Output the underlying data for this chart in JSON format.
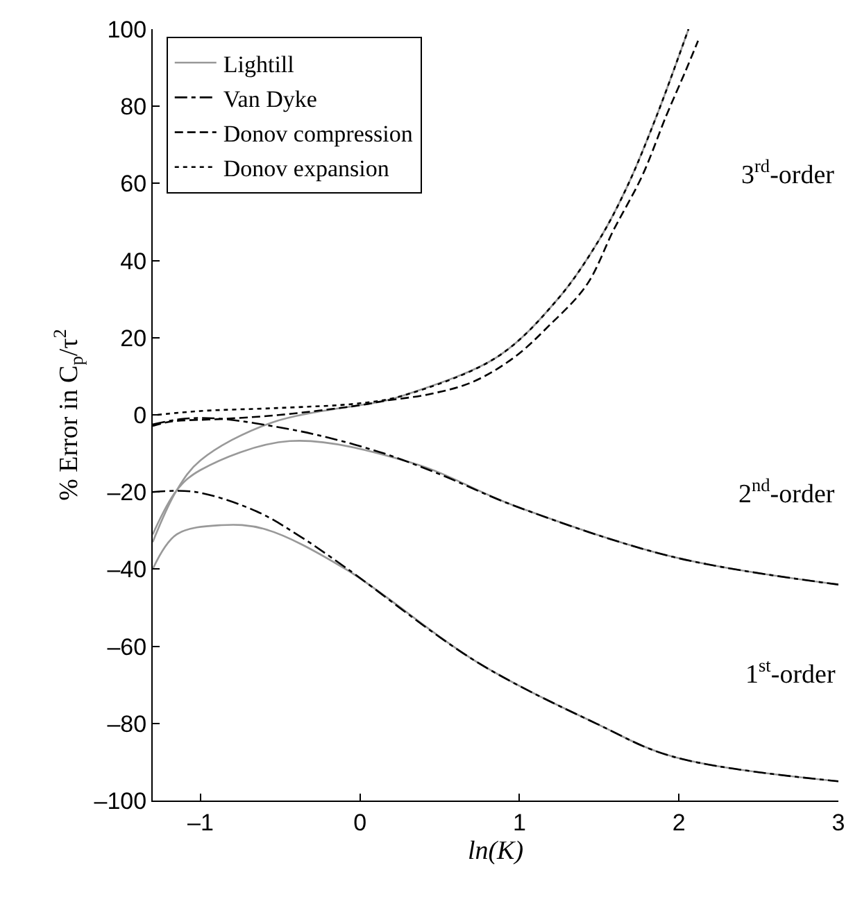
{
  "chart_data": {
    "type": "line",
    "xlabel": "ln(K)",
    "ylabel": "% Error in C$_{p}$/τ$^{2}$",
    "xlim": [
      -1.3,
      3
    ],
    "xticks": [
      {
        "value": -1,
        "label": "–1"
      },
      0,
      1,
      2,
      3
    ],
    "ylim": [
      -100,
      100
    ],
    "yticks": [
      {
        "value": -100,
        "label": "–100"
      },
      {
        "value": -80,
        "label": "–80"
      },
      {
        "value": -60,
        "label": "–60"
      },
      {
        "value": -40,
        "label": "–40"
      },
      {
        "value": -20,
        "label": "–20"
      },
      0,
      20,
      40,
      60,
      80,
      100
    ],
    "legend": "top left",
    "marker": "none",
    "series": [
      {
        "name": "Lightill",
        "color": "#999999",
        "line_style": "solid",
        "x": [
          -1.3,
          -1.15,
          -0.87,
          -0.6,
          -0.09,
          0.73,
          1.48,
          1.96,
          3,
          null,
          -1.3,
          -1.15,
          -1.0,
          -0.44,
          0.33,
          0.97,
          1.96,
          3,
          null,
          -1.3,
          -1.15,
          -1.0,
          -0.56,
          0.15,
          0.27,
          0.86,
          1.24,
          1.5,
          1.68,
          1.86,
          2.06
        ],
        "values": [
          -40,
          -31,
          -28.6,
          -29.6,
          -40,
          -64,
          -80,
          -88.6,
          -95,
          null,
          -31,
          -19.6,
          -14.3,
          -6.8,
          -12.5,
          -23.6,
          -36.8,
          -44,
          null,
          -33,
          -19.6,
          -11.8,
          -2.1,
          3.6,
          5,
          15,
          30,
          45.4,
          59.6,
          77.5,
          100
        ]
      },
      {
        "name": "Van Dyke",
        "color": "#000000",
        "line_style": "dashdot",
        "x": [
          -1.3,
          -1.03,
          -0.65,
          -0.38,
          -0.09,
          0.73,
          1.48,
          1.96,
          3,
          null,
          -1.3,
          -1.1,
          -0.88,
          -0.47,
          -0.2,
          0.15,
          0.5,
          0.97,
          1.96,
          3
        ],
        "values": [
          -20,
          -20,
          -25,
          -31.4,
          -39.6,
          -64,
          -80,
          -88.6,
          -95,
          null,
          -2.5,
          -1,
          -1,
          -3.5,
          -5.9,
          -10,
          -15.4,
          -23.6,
          -36.8,
          -44
        ]
      },
      {
        "name": "Donov compression",
        "color": "#000000",
        "line_style": "dashed",
        "x": [
          -1.3,
          -1.18,
          -0.88,
          -0.5,
          0,
          0.15,
          0.44,
          0.71,
          0.97,
          1.18,
          1.42,
          1.59,
          1.77,
          1.92,
          2.04,
          2.12
        ],
        "values": [
          -2.9,
          -1.7,
          -1.1,
          0,
          2.5,
          3.6,
          5.4,
          8.6,
          15,
          22.9,
          33.6,
          47.9,
          62,
          77.5,
          89,
          97
        ]
      },
      {
        "name": "Donov expansion",
        "color": "#000000",
        "line_style": "dotted",
        "x": [
          -1.27,
          -1.0,
          -0.5,
          0,
          0.27,
          0.86,
          1.24,
          1.5,
          1.68,
          1.86,
          2.06
        ],
        "values": [
          0,
          1,
          1.8,
          3,
          5,
          15,
          30,
          45.4,
          59.6,
          77.5,
          100
        ]
      }
    ],
    "annotations": [
      "3$^{rd}$-order",
      "2$^{nd}$-order",
      "1$^{st}$-order"
    ]
  }
}
